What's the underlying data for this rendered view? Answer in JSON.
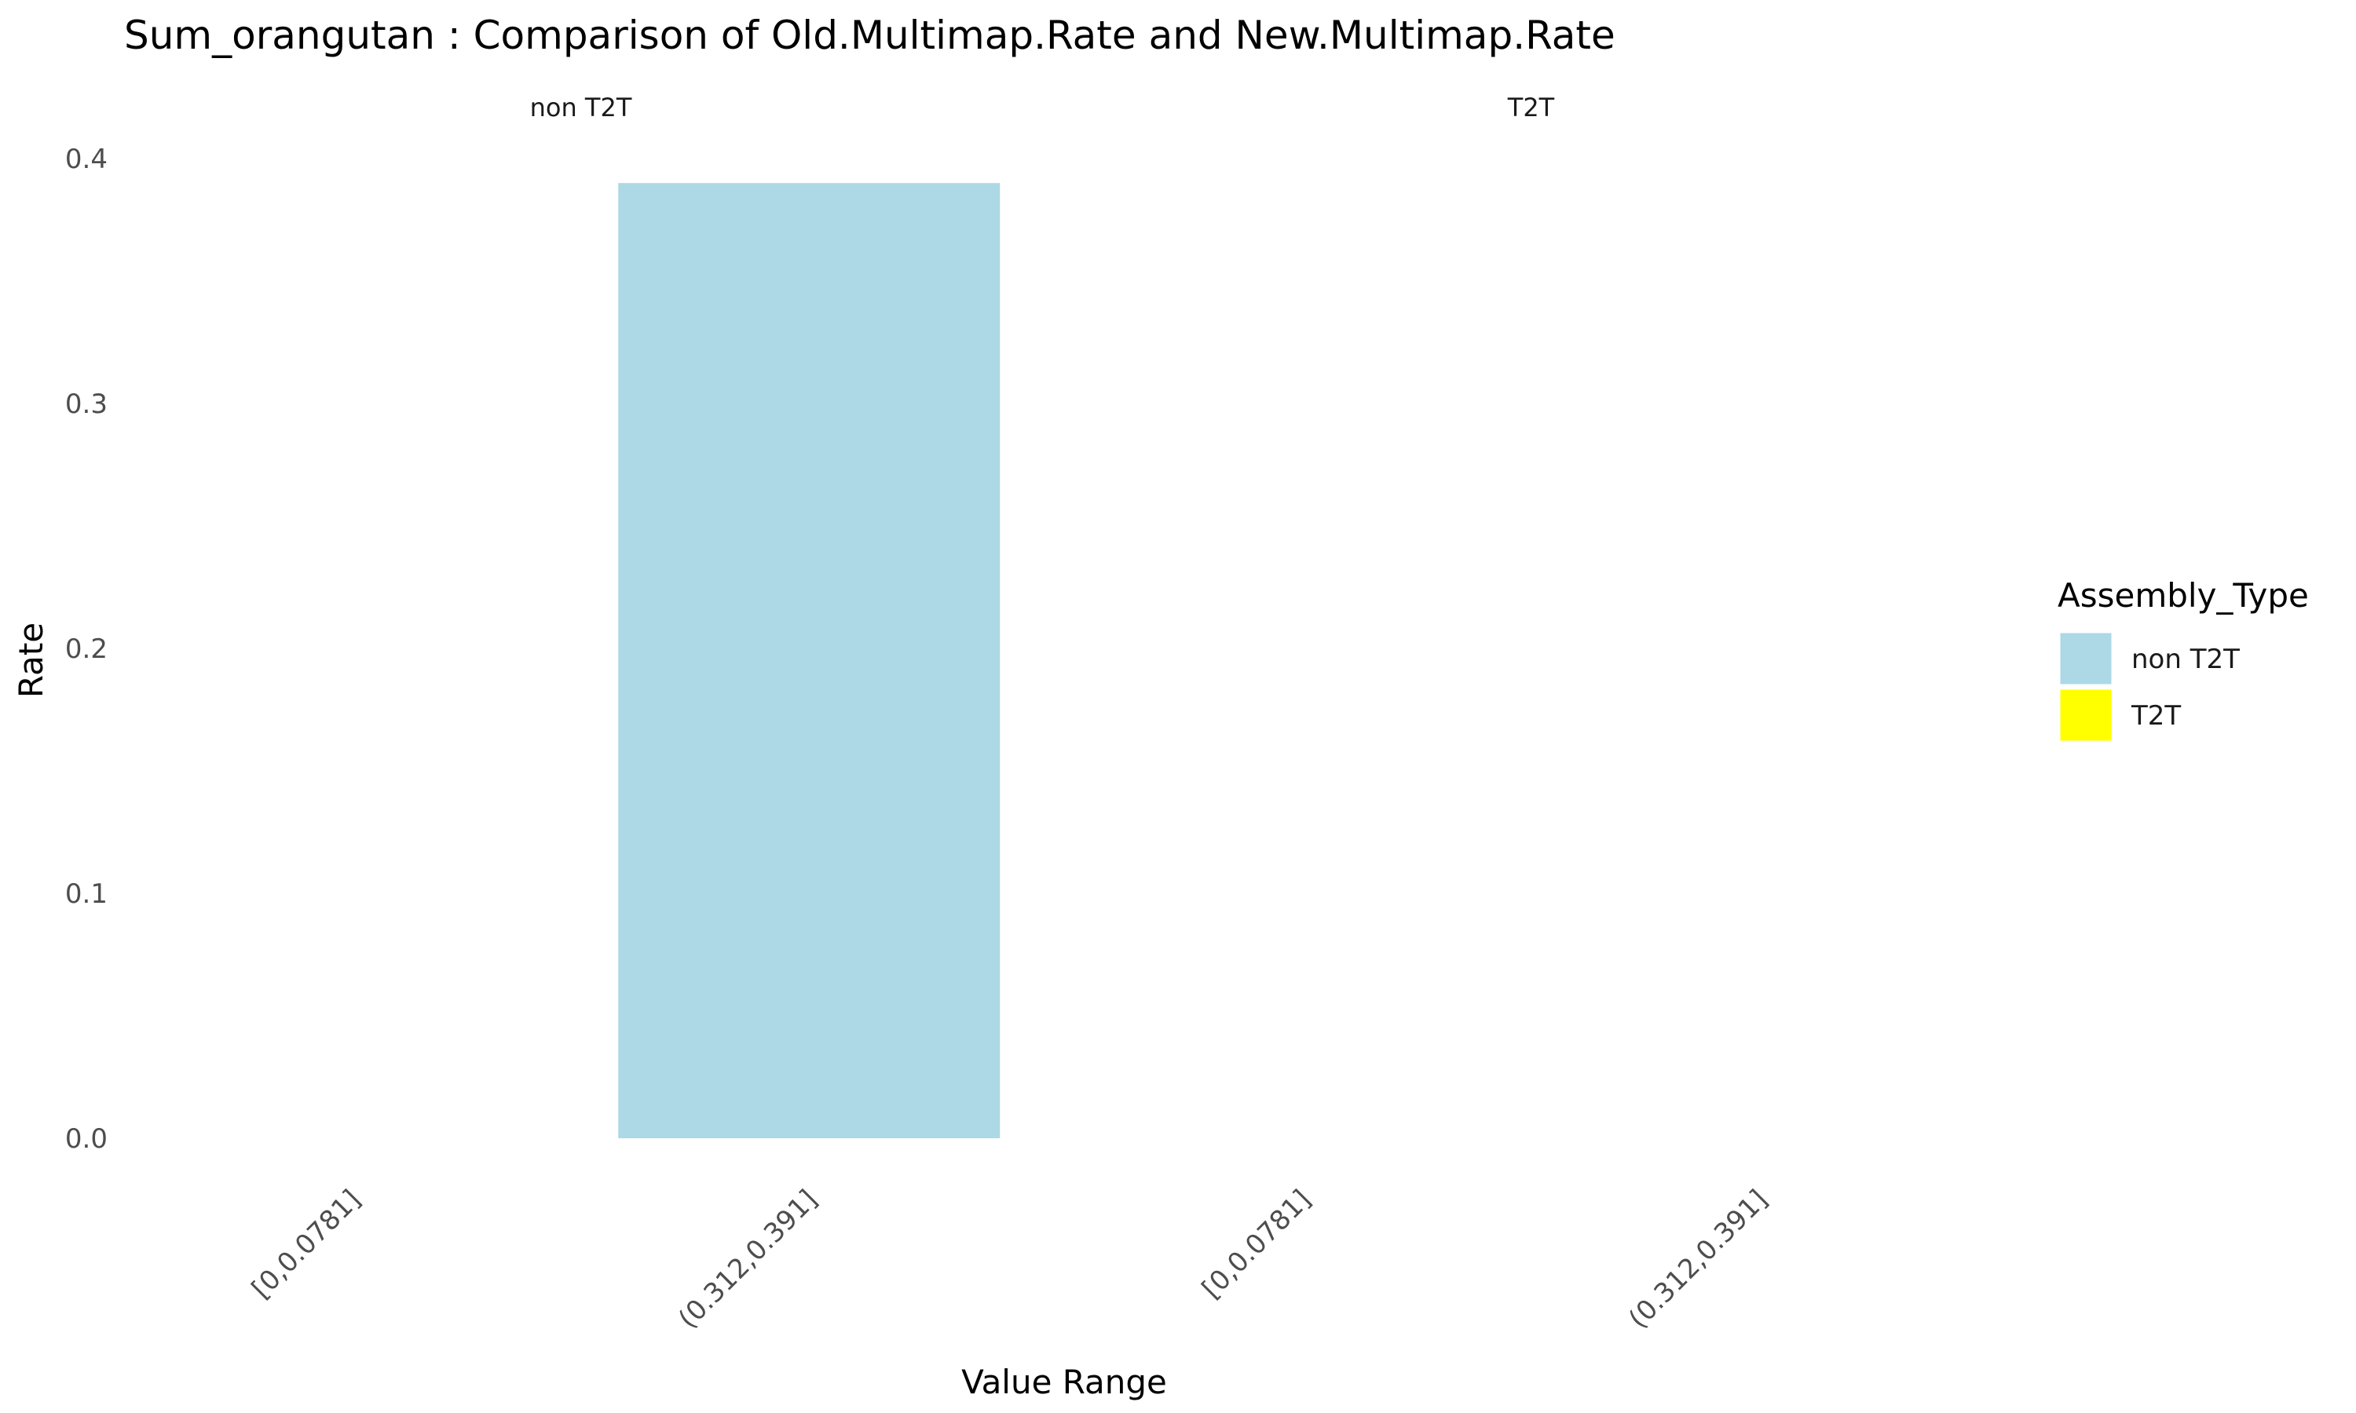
{
  "chart_data": {
    "type": "bar",
    "title": "Sum_orangutan : Comparison of Old.Multimap.Rate and New.Multimap.Rate",
    "xlabel": "Value Range",
    "ylabel": "Rate",
    "ylim": [
      0,
      0.4
    ],
    "yticks": [
      "0.0",
      "0.1",
      "0.2",
      "0.3",
      "0.4"
    ],
    "grid": false,
    "legend": {
      "title": "Assembly_Type",
      "placement": "right",
      "items": [
        {
          "label": "non T2T",
          "color": "#add8e6"
        },
        {
          "label": "T2T",
          "color": "#ffff00"
        }
      ]
    },
    "panels": [
      {
        "strip": "non T2T",
        "categories": [
          "[0,0.0781]",
          "(0.312,0.391]"
        ],
        "values": [
          0,
          0.39
        ],
        "color": "#add8e6"
      },
      {
        "strip": "T2T",
        "categories": [
          "[0,0.0781]",
          "(0.312,0.391]"
        ],
        "values": [
          0,
          0
        ],
        "color": "#ffff00"
      }
    ]
  }
}
